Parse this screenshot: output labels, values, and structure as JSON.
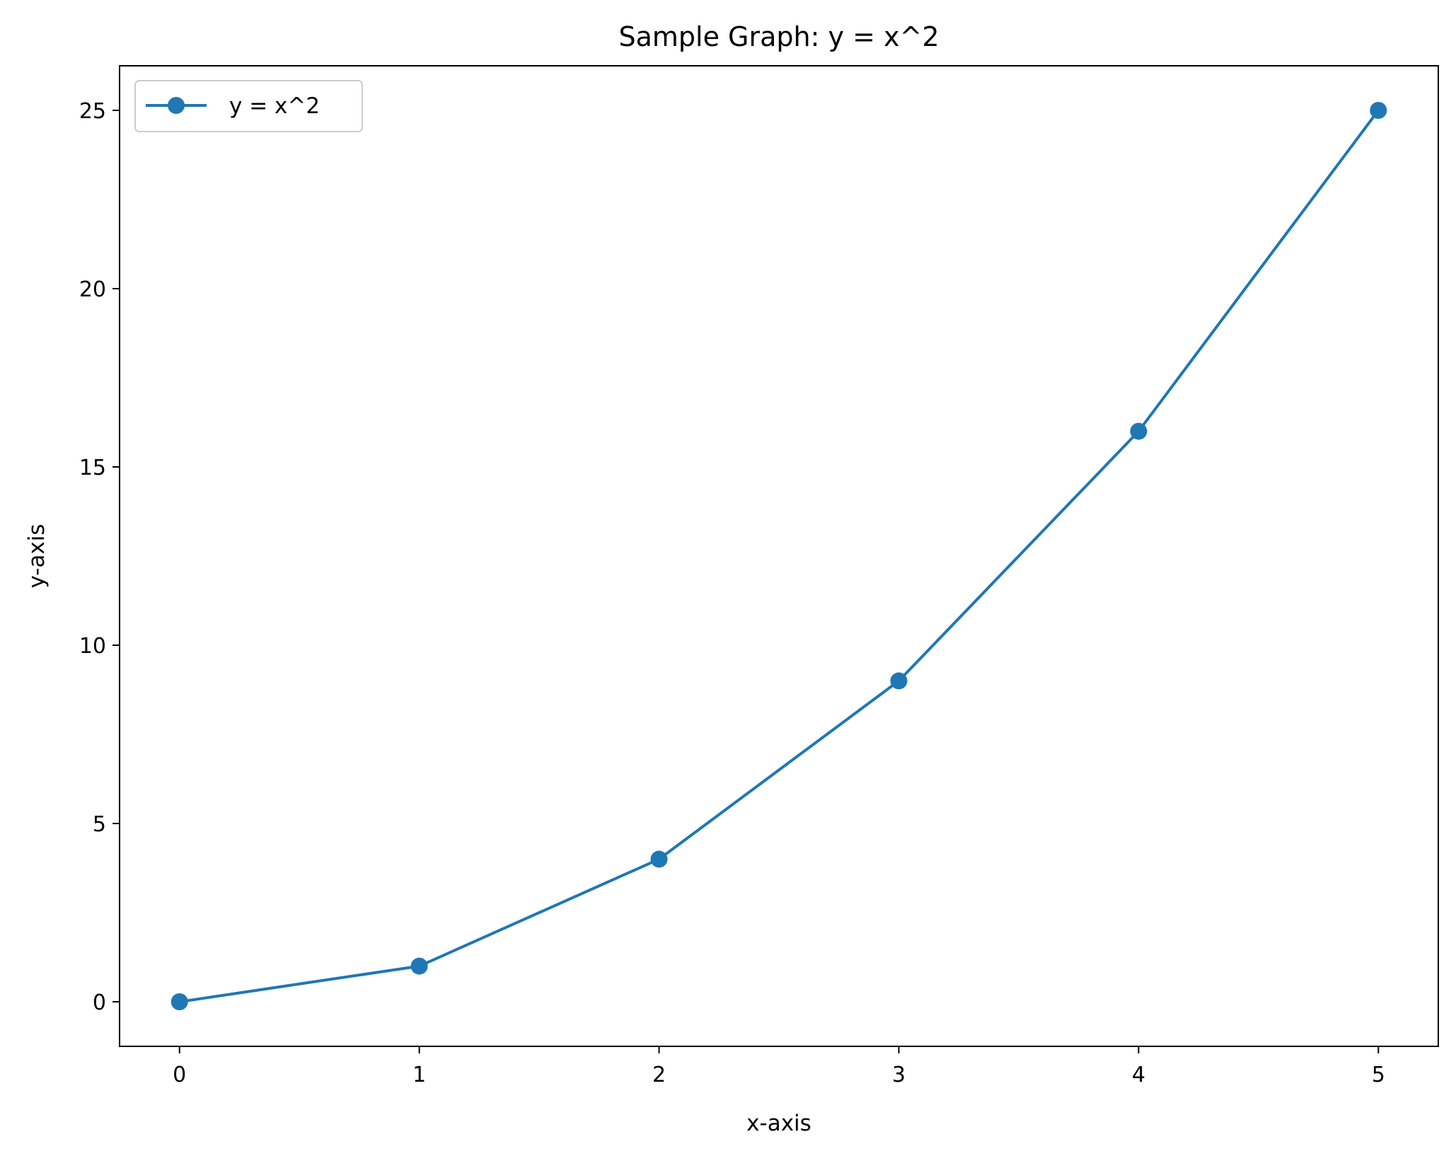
{
  "chart_data": {
    "type": "line",
    "title": "Sample Graph: y = x^2",
    "xlabel": "x-axis",
    "ylabel": "y-axis",
    "x": [
      0,
      1,
      2,
      3,
      4,
      5
    ],
    "series": [
      {
        "name": "y = x^2",
        "values": [
          0,
          1,
          4,
          9,
          16,
          25
        ],
        "color": "#1f77b4",
        "marker": "circle"
      }
    ],
    "xlim": [
      -0.25,
      5.25
    ],
    "ylim": [
      -1.25,
      26.25
    ],
    "xticks": [
      0,
      1,
      2,
      3,
      4,
      5
    ],
    "xtick_labels": [
      "0",
      "1",
      "2",
      "3",
      "4",
      "5"
    ],
    "yticks": [
      0,
      5,
      10,
      15,
      20,
      25
    ],
    "ytick_labels": [
      "0",
      "5",
      "10",
      "15",
      "20",
      "25"
    ],
    "grid": false,
    "legend_position": "top-left"
  }
}
